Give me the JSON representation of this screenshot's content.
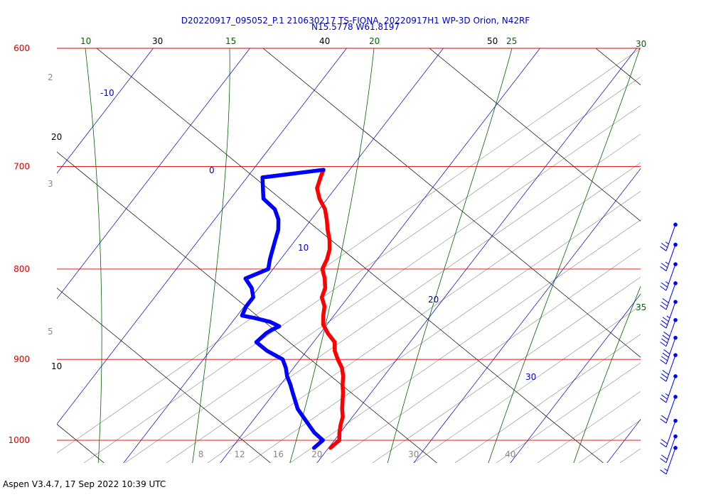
{
  "title_line1": "D20220917_095052_P.1 210630217 TS-FIONA, 20220917H1 WP-3D Orion, N42RF",
  "title_line2": "N15.5778 W61.8197",
  "footer": "Aspen V3.4.7, 17 Sep 2022  10:39 UTC",
  "chart_data": {
    "type": "line",
    "subtype": "skew-T log-P",
    "ylabel": "",
    "xlabel": "",
    "pressure_ticks": [
      600,
      700,
      800,
      900,
      1000
    ],
    "temperature_ticks": [
      8,
      12,
      16,
      20,
      30,
      40
    ],
    "pressure_range": [
      600,
      1030
    ],
    "mixing_ratio_labels": [
      "2",
      "3",
      "5",
      "8",
      "12",
      "16",
      "20",
      "30",
      "40"
    ],
    "dry_adiabat_labels": [
      "10",
      "20",
      "30",
      "40",
      "50"
    ],
    "moist_adiabat_labels": [
      "10",
      "15",
      "20",
      "25",
      "30",
      "35"
    ],
    "isotherm_labels": [
      "-10",
      "0",
      "10",
      "20",
      "30"
    ],
    "colors": {
      "isobar": "#dd0000",
      "isotherm": "#0000cc",
      "moist_adiabat": "#006600",
      "dry_adiabat": "#000000",
      "mixing_ratio": "#888888",
      "temperature": "#ff0000",
      "dewpoint": "#0000ff",
      "pressure_label": "#dd0000",
      "mixing_ratio_label": "#888888",
      "wind": "#0000ff"
    },
    "series": [
      {
        "id": "temperature",
        "pressure": [
          1010,
          1000,
          990,
          980,
          970,
          960,
          950,
          940,
          930,
          920,
          910,
          900,
          890,
          880,
          870,
          860,
          850,
          840,
          830,
          820,
          810,
          800,
          790,
          780,
          770,
          760,
          750,
          740,
          730,
          720,
          710,
          703
        ],
        "value": [
          20.2,
          20.5,
          19.9,
          19.4,
          19.0,
          18.3,
          17.7,
          17.1,
          16.4,
          15.8,
          15.0,
          13.9,
          12.9,
          12.2,
          10.8,
          9.6,
          8.9,
          8.3,
          7.3,
          6.9,
          6.1,
          5.1,
          4.8,
          4.3,
          3.5,
          2.5,
          1.6,
          0.6,
          -0.8,
          -1.9,
          -2.4,
          -2.7
        ]
      },
      {
        "id": "dewpoint",
        "pressure": [
          1010,
          1000,
          990,
          980,
          970,
          960,
          950,
          940,
          930,
          920,
          910,
          900,
          890,
          880,
          870,
          866,
          862,
          857,
          853,
          850,
          840,
          830,
          820,
          810,
          800,
          790,
          780,
          770,
          760,
          750,
          740,
          730,
          720,
          710,
          703
        ],
        "value": [
          18.5,
          18.8,
          17.3,
          16.1,
          14.9,
          13.7,
          12.8,
          11.9,
          11.0,
          10.0,
          9.2,
          8.2,
          5.9,
          4.1,
          4.4,
          4.7,
          5.2,
          3.9,
          2.1,
          0.5,
          0.2,
          0.2,
          -0.7,
          -2.1,
          -0.5,
          -1.1,
          -1.6,
          -2.1,
          -2.6,
          -3.4,
          -4.6,
          -6.6,
          -7.5,
          -8.4,
          -2.7
        ]
      }
    ],
    "winds": [
      {
        "pressure": 755,
        "speed_kt": 25
      },
      {
        "pressure": 775,
        "speed_kt": 25
      },
      {
        "pressure": 795,
        "speed_kt": 25
      },
      {
        "pressure": 815,
        "speed_kt": 30
      },
      {
        "pressure": 835,
        "speed_kt": 35
      },
      {
        "pressure": 855,
        "speed_kt": 40
      },
      {
        "pressure": 875,
        "speed_kt": 40
      },
      {
        "pressure": 895,
        "speed_kt": 30
      },
      {
        "pressure": 920,
        "speed_kt": 25
      },
      {
        "pressure": 945,
        "speed_kt": 20
      },
      {
        "pressure": 975,
        "speed_kt": 20
      },
      {
        "pressure": 995,
        "speed_kt": 20
      },
      {
        "pressure": 1010,
        "speed_kt": 15
      }
    ]
  }
}
